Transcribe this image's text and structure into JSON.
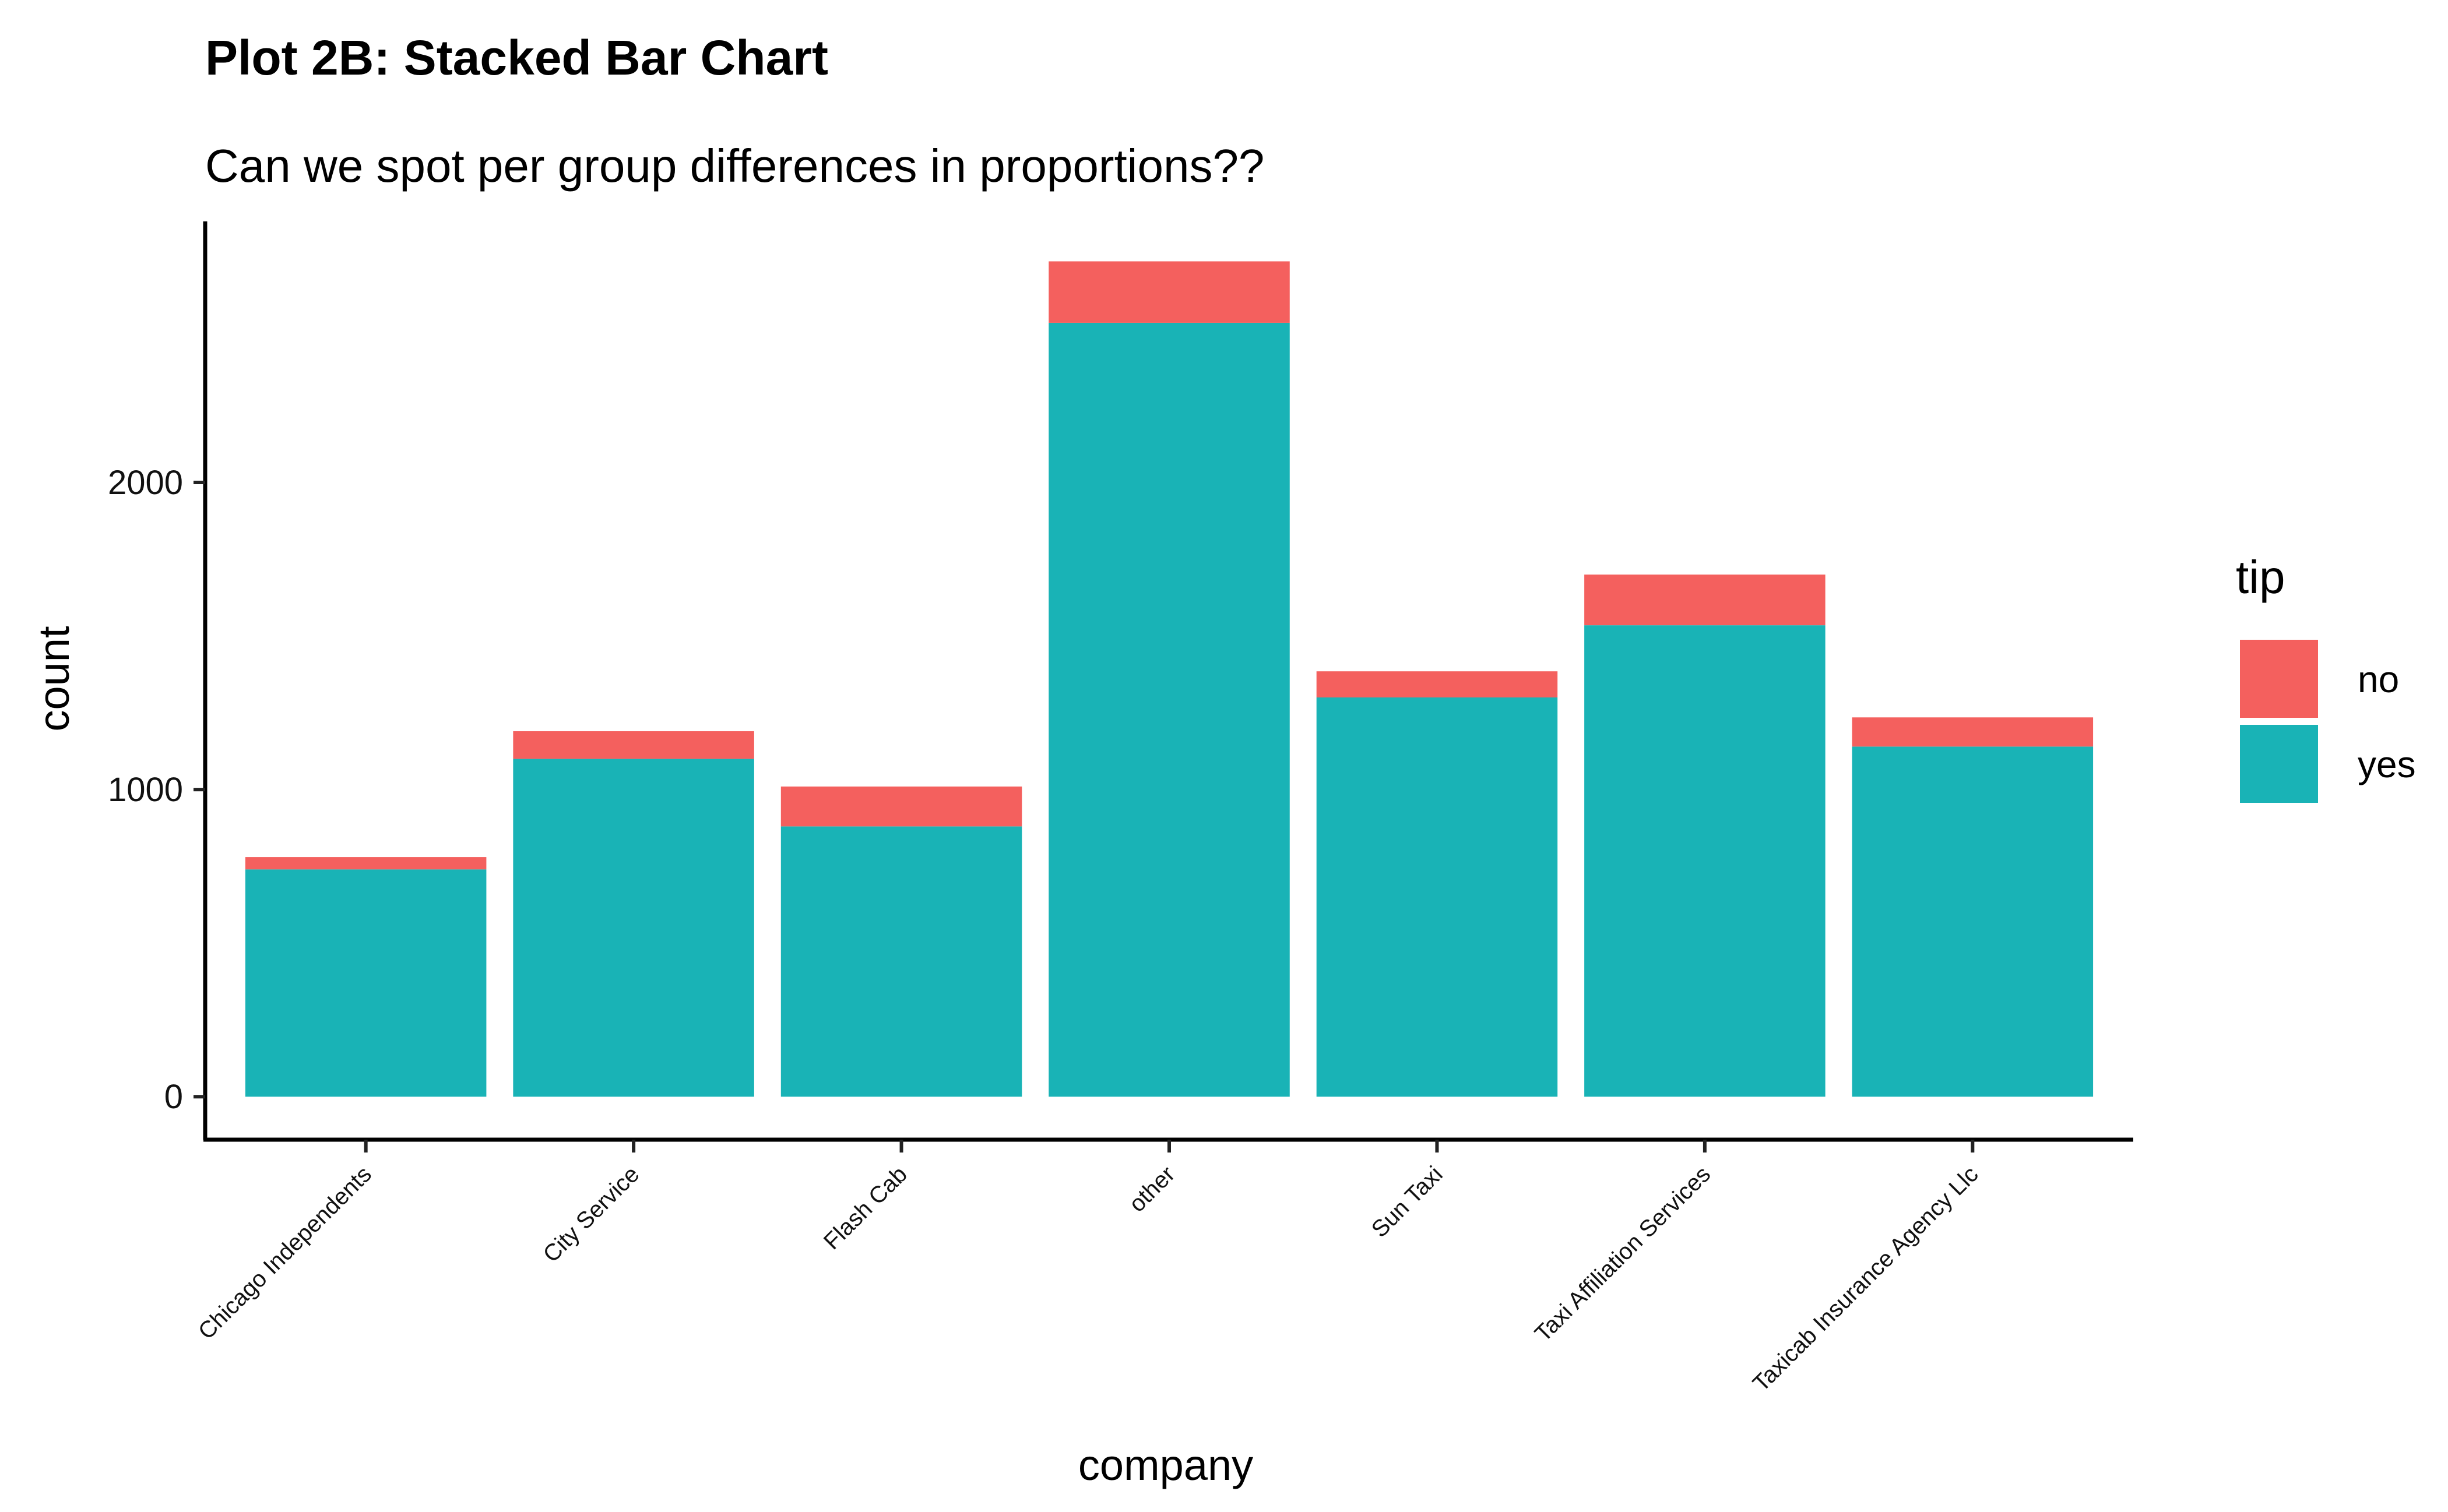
{
  "chart_data": {
    "type": "bar",
    "stacked": true,
    "title": "Plot 2B: Stacked Bar Chart",
    "subtitle": "Can we spot per group differences in proportions??",
    "xlabel": "company",
    "ylabel": "count",
    "categories": [
      "Chicago Independents",
      "City Service",
      "Flash Cab",
      "other",
      "Sun Taxi",
      "Taxi Affiliation Services",
      "Taxicab Insurance Agency Llc"
    ],
    "series": [
      {
        "name": "yes",
        "color": "#19B3B6",
        "values": [
          740,
          1100,
          880,
          2520,
          1300,
          1535,
          1140
        ]
      },
      {
        "name": "no",
        "color": "#F4605E",
        "values": [
          40,
          90,
          130,
          200,
          85,
          165,
          95
        ]
      }
    ],
    "yticks": [
      0,
      1000,
      2000
    ],
    "ytick_labels": [
      "0",
      "1000",
      "2000"
    ],
    "ylim": [
      -140,
      2850
    ],
    "grid": false,
    "legend": {
      "title": "tip",
      "placement": "right",
      "entries": [
        {
          "label": "no",
          "color": "#F4605E"
        },
        {
          "label": "yes",
          "color": "#19B3B6"
        }
      ]
    }
  }
}
